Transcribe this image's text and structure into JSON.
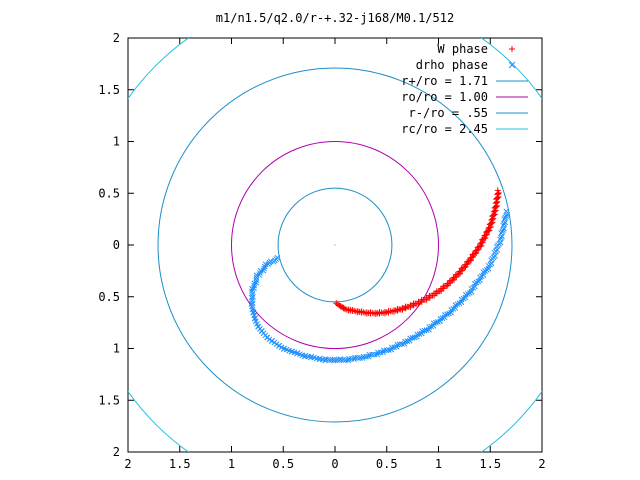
{
  "chart_data": {
    "type": "scatter",
    "title": "m1/n1.5/q2.0/r-+.32-j168/M0.1/512",
    "xlabel": "",
    "ylabel": "",
    "xlim": [
      -2,
      2
    ],
    "ylim": [
      -2,
      2
    ],
    "x_ticks": [
      -2,
      -1.5,
      -1,
      -0.5,
      0,
      0.5,
      1,
      1.5,
      2
    ],
    "x_tick_labels": [
      "2",
      "1.5",
      "1",
      "0.5",
      "0",
      "0.5",
      "1",
      "1.5",
      "2"
    ],
    "y_ticks": [
      2,
      1.5,
      1,
      0.5,
      0,
      -0.5,
      -1,
      -1.5,
      -2
    ],
    "y_tick_labels": [
      "2",
      "1.5",
      "1",
      "0.5",
      "0",
      "0.5",
      "1",
      "1.5",
      "2"
    ],
    "grid": false,
    "legend_position": "top-right",
    "series": [
      {
        "name": "W phase",
        "kind": "points",
        "marker": "plus",
        "color": "#ff0000",
        "x": [
          0.02,
          0.1,
          0.2,
          0.3,
          0.4,
          0.5,
          0.6,
          0.7,
          0.8,
          0.9,
          1.0,
          1.1,
          1.2,
          1.3,
          1.4,
          1.5,
          1.55,
          1.58
        ],
        "y": [
          -0.57,
          -0.62,
          -0.64,
          -0.655,
          -0.66,
          -0.65,
          -0.63,
          -0.6,
          -0.56,
          -0.51,
          -0.45,
          -0.37,
          -0.27,
          -0.15,
          -0.01,
          0.18,
          0.35,
          0.52
        ]
      },
      {
        "name": "drho phase",
        "kind": "points",
        "marker": "cross",
        "color": "#1e90ff",
        "x": [
          -0.55,
          -0.65,
          -0.75,
          -0.8,
          -0.8,
          -0.75,
          -0.65,
          -0.5,
          -0.3,
          -0.1,
          0.1,
          0.3,
          0.5,
          0.7,
          0.9,
          1.1,
          1.3,
          1.5,
          1.6,
          1.66
        ],
        "y": [
          -0.13,
          -0.18,
          -0.3,
          -0.45,
          -0.62,
          -0.78,
          -0.9,
          -1.0,
          -1.07,
          -1.11,
          -1.11,
          -1.08,
          -1.02,
          -0.93,
          -0.81,
          -0.66,
          -0.46,
          -0.19,
          0.05,
          0.32
        ]
      },
      {
        "name": "r+/ro = 1.71",
        "kind": "circle",
        "radius": 1.71,
        "color": "#1b8fc9"
      },
      {
        "name": "ro/ro = 1.00",
        "kind": "circle",
        "radius": 1.0,
        "color": "#b000b0"
      },
      {
        "name": "r-/ro = .55",
        "kind": "circle",
        "radius": 0.55,
        "color": "#1b8fc9"
      },
      {
        "name": "rc/ro = 2.45",
        "kind": "circle",
        "radius": 2.45,
        "color": "#20c0e0"
      }
    ]
  }
}
